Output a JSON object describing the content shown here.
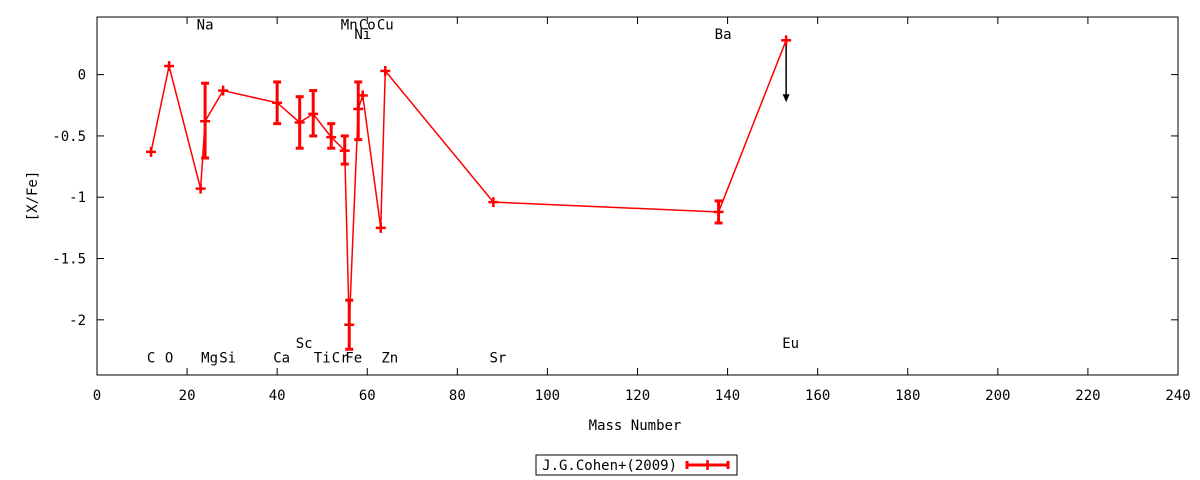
{
  "chart_data": {
    "type": "line",
    "xlabel": "Mass Number",
    "ylabel": "[X/Fe]",
    "xlim": [
      0,
      240
    ],
    "ylim": [
      -2.45,
      0.47
    ],
    "xticks": [
      0,
      20,
      40,
      60,
      80,
      100,
      120,
      140,
      160,
      180,
      200,
      220,
      240
    ],
    "yticks": [
      0,
      -0.5,
      -1,
      -1.5,
      -2
    ],
    "ytick_labels": [
      "0",
      "-0.5",
      "-1",
      "-1.5",
      "-2"
    ],
    "grid": false,
    "legend": {
      "position": "bottom-center",
      "entry": "J.G.Cohen+(2009)"
    },
    "series": [
      {
        "name": "J.G.Cohen+(2009)",
        "color": "#ff0000",
        "points": [
          {
            "x": 12,
            "y": -0.63
          },
          {
            "x": 16,
            "y": 0.07
          },
          {
            "x": 23,
            "y": -0.93
          },
          {
            "x": 24,
            "y": -0.38,
            "err_low": -0.68,
            "err_high": -0.07
          },
          {
            "x": 28,
            "y": -0.13
          },
          {
            "x": 40,
            "y": -0.23,
            "err_low": -0.4,
            "err_high": -0.06
          },
          {
            "x": 45,
            "y": -0.39,
            "err_low": -0.6,
            "err_high": -0.18
          },
          {
            "x": 48,
            "y": -0.32,
            "err_low": -0.5,
            "err_high": -0.13
          },
          {
            "x": 52,
            "y": -0.51,
            "err_low": -0.6,
            "err_high": -0.4
          },
          {
            "x": 55,
            "y": -0.62,
            "err_low": -0.73,
            "err_high": -0.5
          },
          {
            "x": 56,
            "y": -2.04,
            "err_low": -2.24,
            "err_high": -1.84
          },
          {
            "x": 58,
            "y": -0.28,
            "err_low": -0.53,
            "err_high": -0.06
          },
          {
            "x": 59,
            "y": -0.17
          },
          {
            "x": 63,
            "y": -1.25
          },
          {
            "x": 64,
            "y": 0.03
          },
          {
            "x": 88,
            "y": -1.04
          },
          {
            "x": 138,
            "y": -1.12,
            "err_low": -1.21,
            "err_high": -1.03
          },
          {
            "x": 153,
            "y": 0.28,
            "upper_limit": true
          }
        ]
      }
    ],
    "element_labels": [
      {
        "text": "C",
        "x": 12,
        "y": -2.35
      },
      {
        "text": "O",
        "x": 16,
        "y": -2.35
      },
      {
        "text": "Na",
        "x": 24,
        "y": 0.37
      },
      {
        "text": "Mg",
        "x": 25,
        "y": -2.35
      },
      {
        "text": "Si",
        "x": 29,
        "y": -2.35
      },
      {
        "text": "Ca",
        "x": 41,
        "y": -2.35
      },
      {
        "text": "Sc",
        "x": 46,
        "y": -2.23
      },
      {
        "text": "Ti",
        "x": 50,
        "y": -2.35
      },
      {
        "text": "Cr",
        "x": 54,
        "y": -2.35
      },
      {
        "text": "Fe",
        "x": 57,
        "y": -2.35
      },
      {
        "text": "Mn",
        "x": 56,
        "y": 0.37
      },
      {
        "text": "Co",
        "x": 60,
        "y": 0.37
      },
      {
        "text": "Ni",
        "x": 59,
        "y": 0.29
      },
      {
        "text": "Cu",
        "x": 64,
        "y": 0.37
      },
      {
        "text": "Zn",
        "x": 65,
        "y": -2.35
      },
      {
        "text": "Sr",
        "x": 89,
        "y": -2.35
      },
      {
        "text": "Ba",
        "x": 139,
        "y": 0.29
      },
      {
        "text": "Eu",
        "x": 154,
        "y": -2.23
      }
    ]
  }
}
